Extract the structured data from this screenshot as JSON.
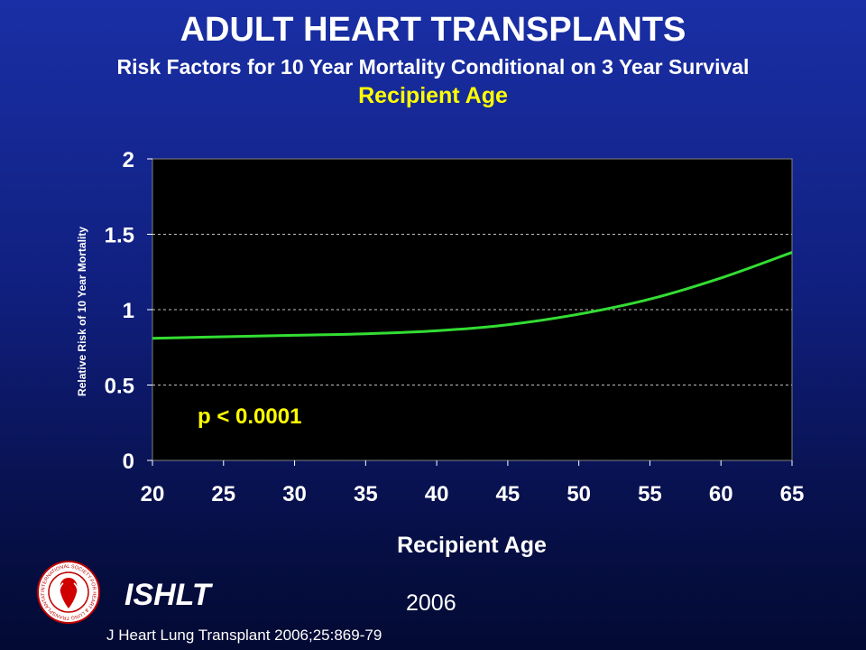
{
  "header": {
    "title": "ADULT HEART TRANSPLANTS",
    "subtitle": "Risk Factors for 10 Year Mortality Conditional on 3 Year Survival",
    "subtitle2": "Recipient Age"
  },
  "chart_data": {
    "type": "line",
    "xlabel": "Recipient Age",
    "ylabel": "Relative Risk of 10 Year Mortality",
    "xlim": [
      20,
      65
    ],
    "ylim": [
      0,
      2
    ],
    "x_ticks": [
      20,
      25,
      30,
      35,
      40,
      45,
      50,
      55,
      60,
      65
    ],
    "y_ticks": [
      0,
      0.5,
      1,
      1.5,
      2
    ],
    "y_tick_labels": [
      "0",
      "0.5",
      "1",
      "1.5",
      "2"
    ],
    "grid": "horizontal dashed",
    "annotation": "p < 0.0001",
    "series": [
      {
        "color": "#33dd33",
        "x": [
          20,
          25,
          30,
          35,
          40,
          45,
          50,
          55,
          60,
          65
        ],
        "y": [
          0.81,
          0.82,
          0.83,
          0.84,
          0.86,
          0.9,
          0.97,
          1.07,
          1.21,
          1.38
        ]
      }
    ],
    "plot_background": "#000000"
  },
  "footer": {
    "org": "ISHLT",
    "year": "2006",
    "citation": "J Heart Lung Transplant 2006;25:869-79",
    "logo_text": "INTERNATIONAL SOCIETY FOR HEART & LUNG TRANSPLANTATION"
  }
}
